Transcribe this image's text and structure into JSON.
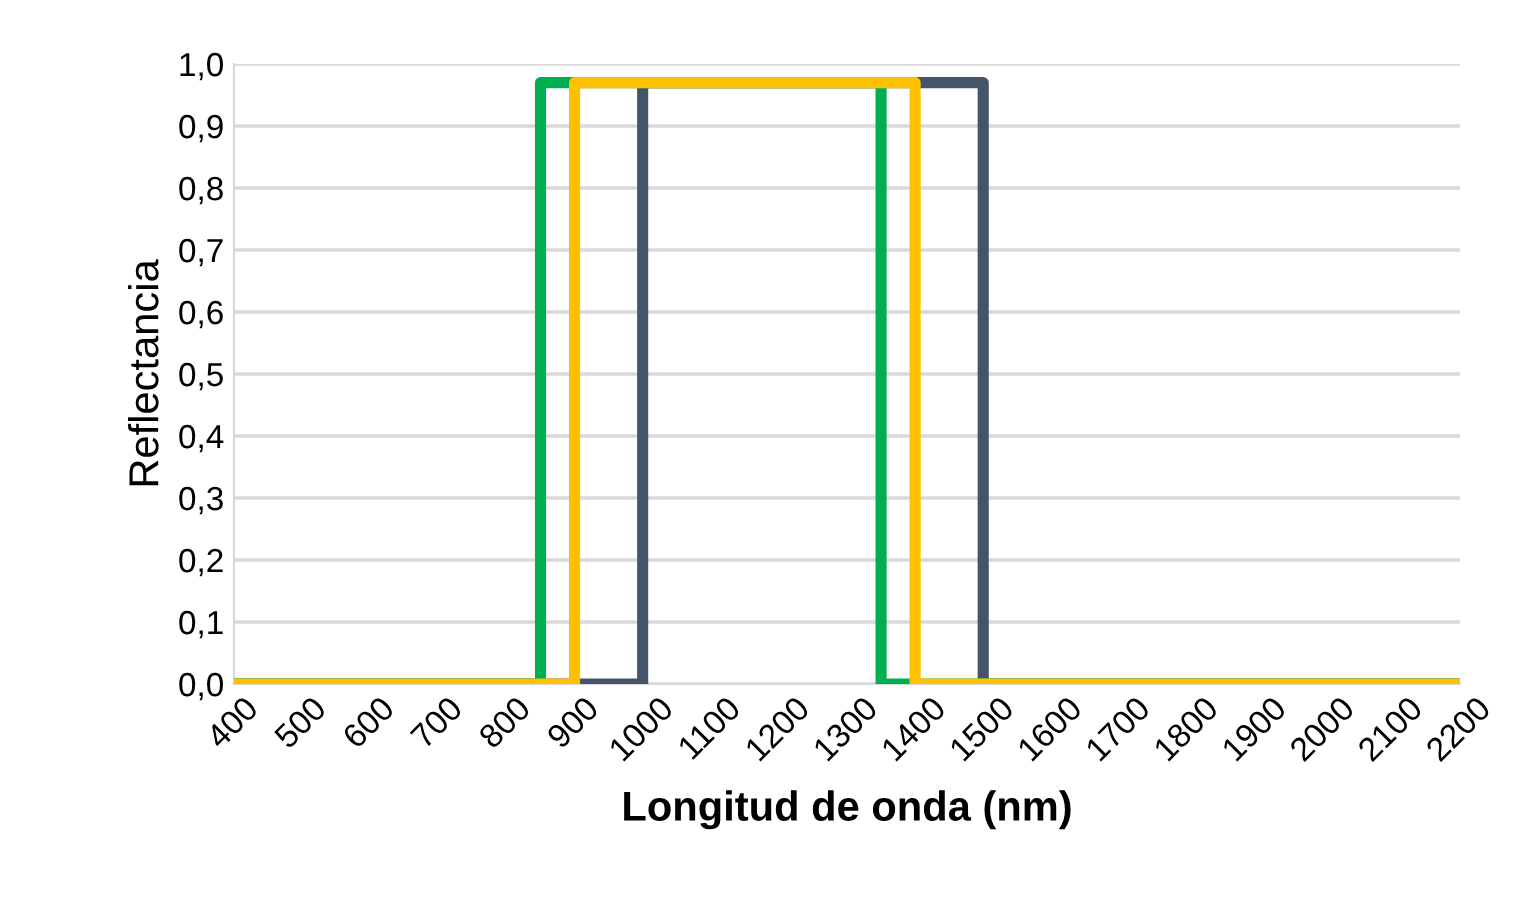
{
  "chart_data": {
    "type": "line",
    "xlabel": "Longitud de onda (nm)",
    "ylabel": "Reflectancia",
    "series": [
      {
        "color": "#44546a",
        "x": [
          400,
          1000,
          1000,
          1500,
          1500,
          2200
        ],
        "values": [
          0,
          0,
          0.97,
          0.97,
          0,
          0
        ]
      },
      {
        "color": "#00b050",
        "x": [
          400,
          850,
          850,
          1350,
          1350,
          2200
        ],
        "values": [
          0,
          0,
          0.97,
          0.97,
          0,
          0
        ]
      },
      {
        "color": "#ffc000",
        "x": [
          400,
          900,
          900,
          1400,
          1400,
          2200
        ],
        "values": [
          0,
          0,
          0.97,
          0.97,
          0,
          0
        ]
      }
    ],
    "xlim": [
      400,
      2200
    ],
    "xticks": [
      400,
      500,
      600,
      700,
      800,
      900,
      1000,
      1100,
      1200,
      1300,
      1400,
      1500,
      1600,
      1700,
      1800,
      1900,
      2000,
      2100,
      2200
    ],
    "ylim": [
      0,
      1
    ],
    "yticks": [
      {
        "value": 0,
        "label": "0,0"
      },
      {
        "value": 0.1,
        "label": "0,1"
      },
      {
        "value": 0.2,
        "label": "0,2"
      },
      {
        "value": 0.3,
        "label": "0,3"
      },
      {
        "value": 0.4,
        "label": "0,4"
      },
      {
        "value": 0.5,
        "label": "0,5"
      },
      {
        "value": 0.6,
        "label": "0,6"
      },
      {
        "value": 0.7,
        "label": "0,7"
      },
      {
        "value": 0.8,
        "label": "0,8"
      },
      {
        "value": 0.9,
        "label": "0,9"
      },
      {
        "value": 1,
        "label": "1,0"
      }
    ],
    "grid": "y",
    "line_style": "solid",
    "marker": "none"
  }
}
